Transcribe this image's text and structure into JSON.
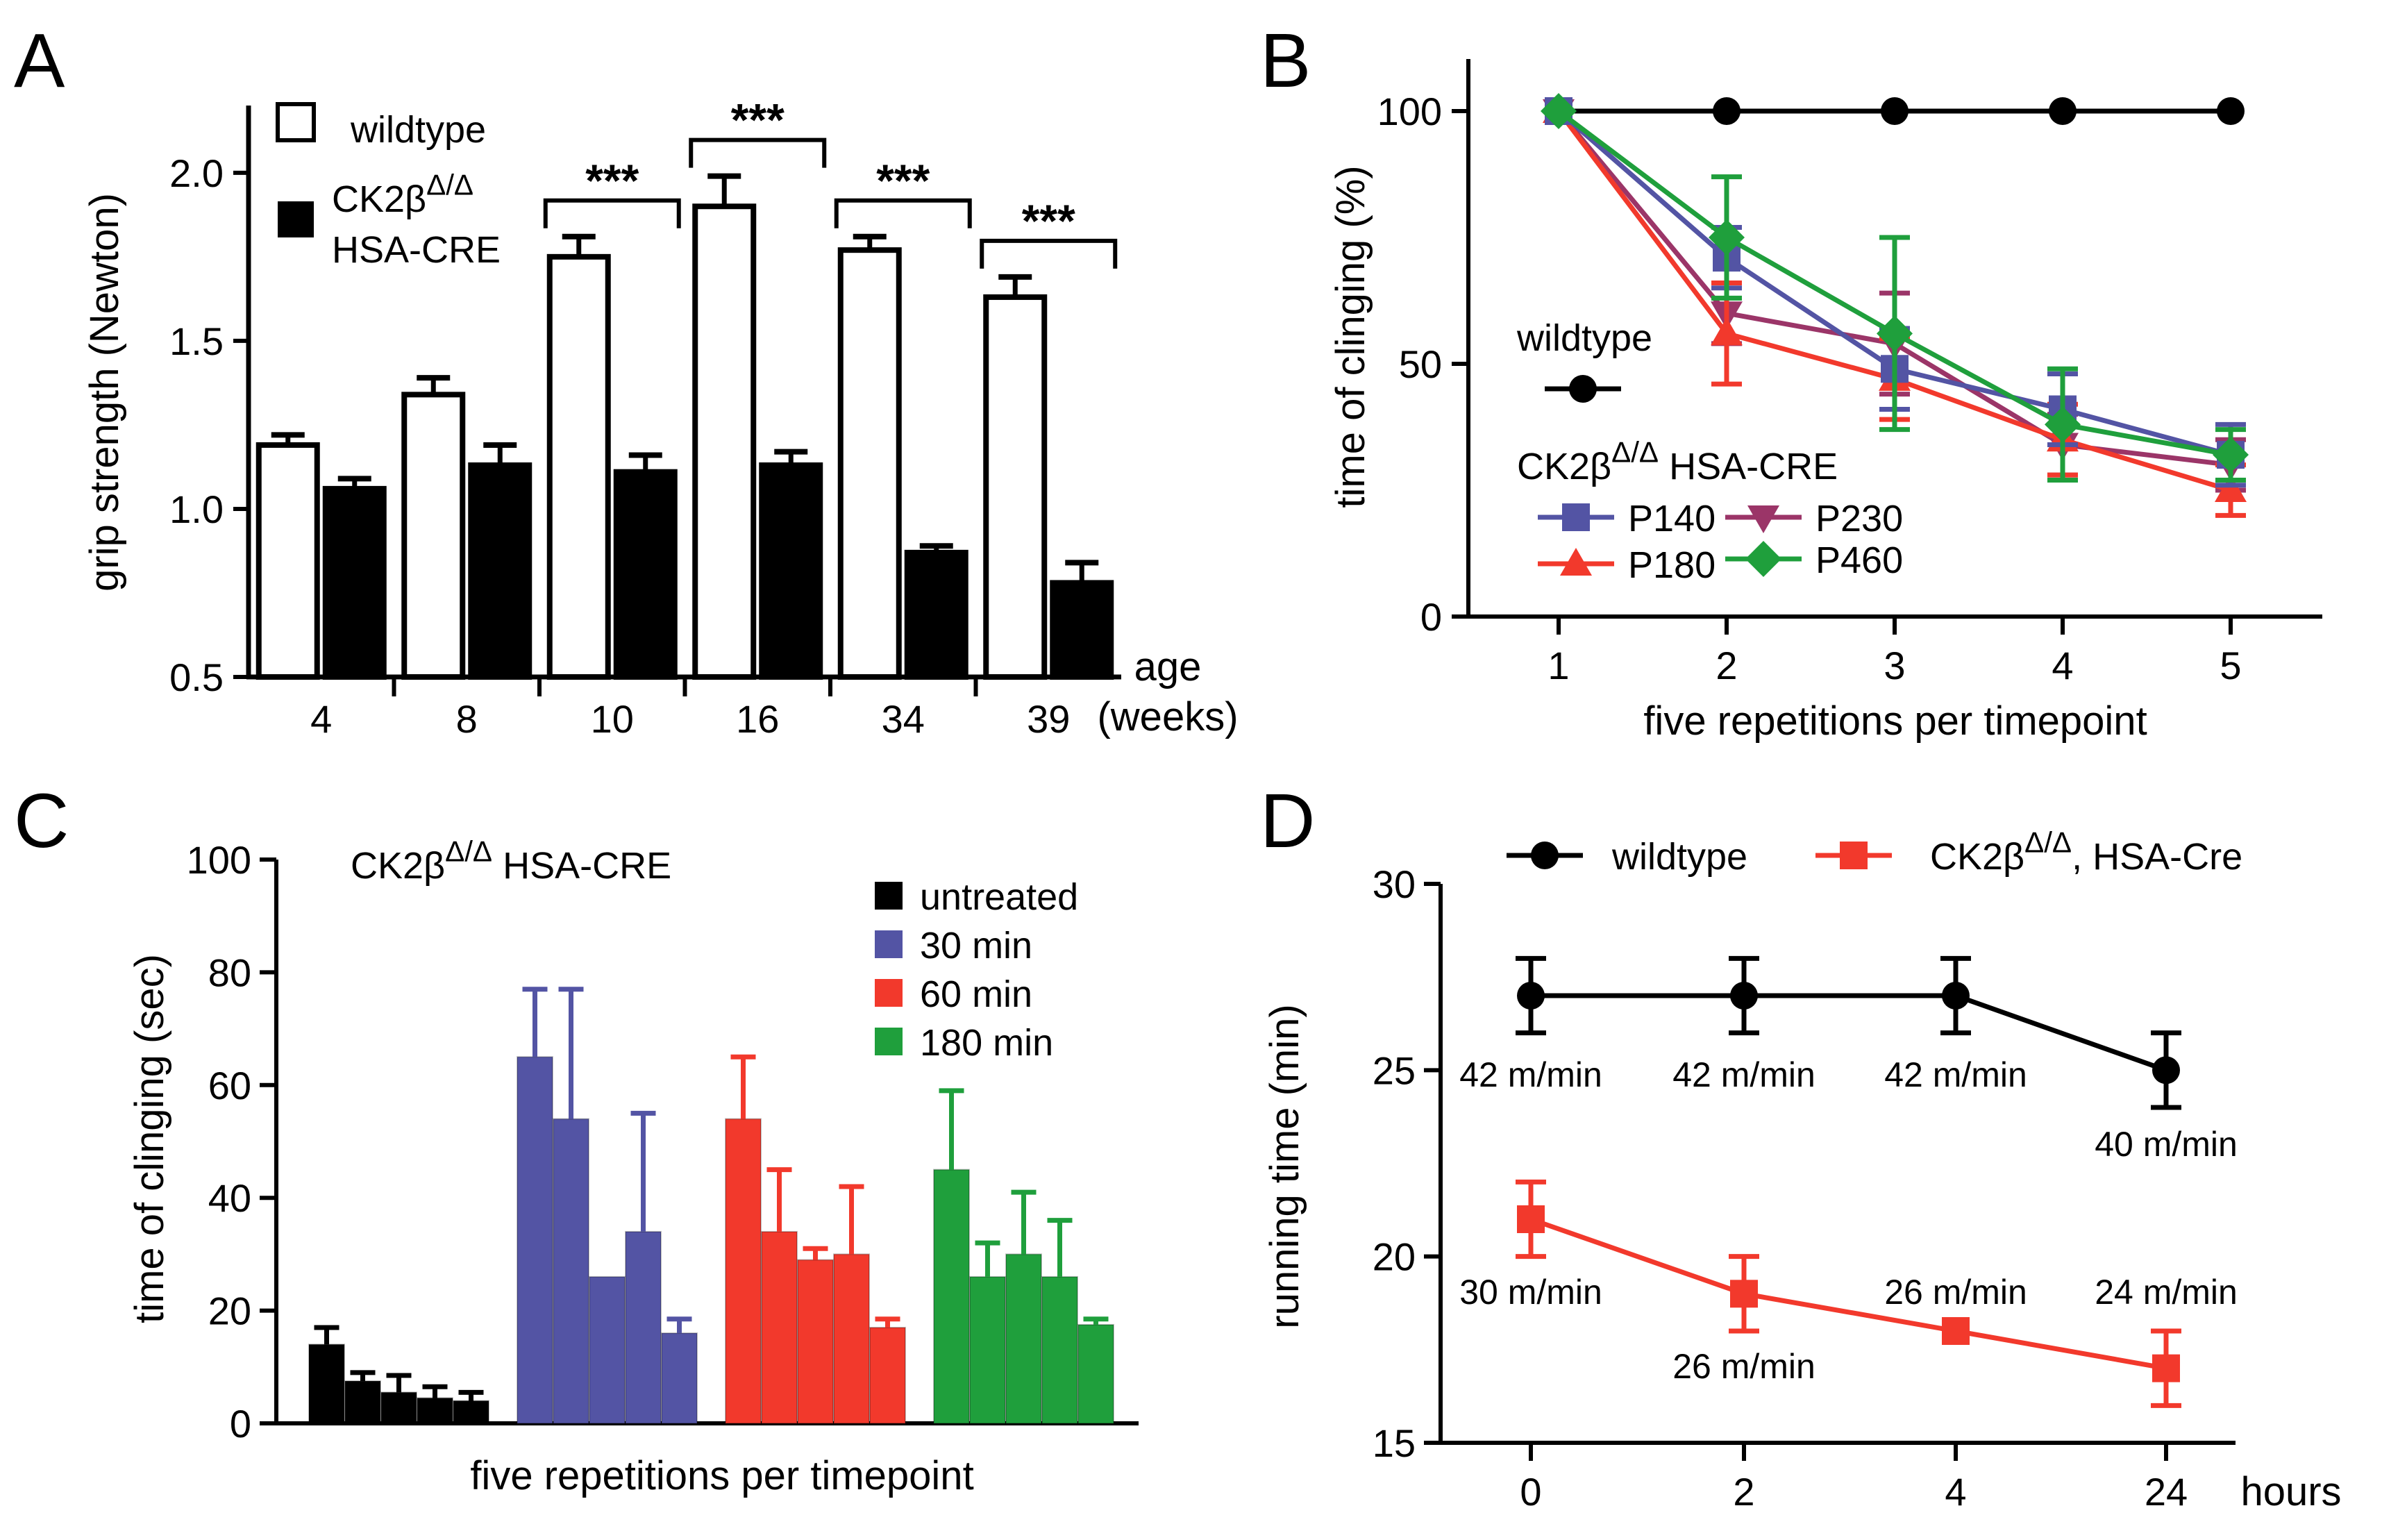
{
  "colors": {
    "black": "#000000",
    "white": "#ffffff",
    "blue": "#5354a4",
    "red": "#f2392c",
    "magenta": "#9b3568",
    "green": "#1f9f3c"
  },
  "chart_data": [
    {
      "panel": "A",
      "type": "bar",
      "ylabel": "grip strength (Newton)",
      "xlabel": "age (weeks)",
      "xlabel_lines": [
        "age",
        "(weeks)"
      ],
      "ylim": [
        0.5,
        2.2
      ],
      "yticks": [
        0.5,
        1.0,
        1.5,
        2.0
      ],
      "ytick_labels": [
        "0.5",
        "1.0",
        "1.5",
        "2.0"
      ],
      "categories": [
        "4",
        "8",
        "10",
        "16",
        "34",
        "39"
      ],
      "legend": [
        {
          "label": "wildtype",
          "fill": "white"
        },
        {
          "label_lines": [
            "CK2β",
            "Δ/Δ",
            "HSA-CRE"
          ],
          "label": "CK2βΔ/Δ HSA-CRE",
          "fill": "black"
        }
      ],
      "series": [
        {
          "name": "wildtype",
          "values": [
            1.19,
            1.34,
            1.75,
            1.9,
            1.77,
            1.63
          ],
          "errors": [
            0.03,
            0.05,
            0.06,
            0.09,
            0.04,
            0.06
          ]
        },
        {
          "name": "CK2βΔ/Δ HSA-CRE",
          "values": [
            1.06,
            1.13,
            1.11,
            1.13,
            0.87,
            0.78
          ],
          "errors": [
            0.03,
            0.06,
            0.05,
            0.04,
            0.02,
            0.06
          ]
        }
      ],
      "significance": [
        {
          "category": "10",
          "label": "***"
        },
        {
          "category": "16",
          "label": "***"
        },
        {
          "category": "34",
          "label": "***"
        },
        {
          "category": "39",
          "label": "***"
        }
      ]
    },
    {
      "panel": "B",
      "type": "line",
      "ylabel": "time of clinging (%)",
      "xlabel": "five repetitions per timepoint",
      "x": [
        1,
        2,
        3,
        4,
        5
      ],
      "xticks": [
        "1",
        "2",
        "3",
        "4",
        "5"
      ],
      "ylim": [
        0,
        100
      ],
      "yticks": [
        0,
        50,
        100
      ],
      "ytick_labels": [
        "0",
        "50",
        "100"
      ],
      "legend_title": "wildtype",
      "group_label_parts": [
        "CK2β",
        "Δ/Δ",
        " HSA-CRE"
      ],
      "series": [
        {
          "name": "wildtype",
          "color": "black",
          "marker": "circle",
          "values": [
            100,
            100,
            100,
            100,
            100
          ],
          "errors": [
            0,
            0,
            0,
            0,
            0
          ]
        },
        {
          "name": "P140",
          "color": "blue",
          "marker": "square",
          "values": [
            100,
            71,
            49,
            41,
            32
          ],
          "errors": [
            0,
            6,
            8,
            7,
            6
          ]
        },
        {
          "name": "P180",
          "color": "red",
          "marker": "triangle-up",
          "values": [
            100,
            56,
            47,
            35,
            25
          ],
          "errors": [
            0,
            10,
            8,
            7,
            5
          ]
        },
        {
          "name": "P230",
          "color": "magenta",
          "marker": "triangle-down",
          "values": [
            100,
            60,
            54,
            34,
            30
          ],
          "errors": [
            0,
            6,
            10,
            6,
            5
          ]
        },
        {
          "name": "P460",
          "color": "green",
          "marker": "diamond",
          "values": [
            100,
            75,
            56,
            38,
            32
          ],
          "errors": [
            0,
            12,
            19,
            11,
            5
          ]
        }
      ]
    },
    {
      "panel": "C",
      "type": "bar",
      "title_parts": [
        "CK2β",
        "Δ/Δ",
        " HSA-CRE"
      ],
      "ylabel": "time of clinging (sec)",
      "xlabel": "five repetitions per timepoint",
      "ylim": [
        0,
        100
      ],
      "yticks": [
        0,
        20,
        40,
        60,
        80,
        100
      ],
      "ytick_labels": [
        "0",
        "20",
        "40",
        "60",
        "80",
        "100"
      ],
      "series": [
        {
          "name": "untreated",
          "legend_label": "untreated",
          "color": "black",
          "values": [
            14,
            7.5,
            5.5,
            4.5,
            4
          ],
          "errors": [
            3,
            1.5,
            3,
            2,
            1.5
          ]
        },
        {
          "name": "30 min",
          "legend_label": "  30 min",
          "color": "blue",
          "values": [
            65,
            54,
            26,
            34,
            16
          ],
          "errors": [
            12,
            23,
            0,
            21,
            2.5
          ]
        },
        {
          "name": "60 min",
          "legend_label": "  60 min",
          "color": "red",
          "values": [
            54,
            34,
            29,
            30,
            17
          ],
          "errors": [
            11,
            11,
            2,
            12,
            1.5
          ]
        },
        {
          "name": "180 min",
          "legend_label": "180 min",
          "color": "green",
          "values": [
            45,
            26,
            30,
            26,
            17.5
          ],
          "errors": [
            14,
            6,
            11,
            10,
            1
          ]
        }
      ]
    },
    {
      "panel": "D",
      "type": "line",
      "ylabel": "running time (min)",
      "xlabel": "hours",
      "x_categories": [
        "0",
        "2",
        "4",
        "24"
      ],
      "ylim": [
        15,
        30
      ],
      "yticks": [
        15,
        20,
        25,
        30
      ],
      "ytick_labels": [
        "15",
        "20",
        "25",
        "30"
      ],
      "legend_wildtype": "wildtype",
      "legend_mutant_parts": [
        "CK2β",
        "Δ/Δ",
        ", HSA-Cre"
      ],
      "series": [
        {
          "name": "wildtype",
          "color": "black",
          "marker": "circle",
          "values": [
            27,
            27,
            27,
            25
          ],
          "errors": [
            1,
            1,
            1,
            1
          ],
          "speed_labels": [
            "42 m/min",
            "42 m/min",
            "42 m/min",
            "40 m/min"
          ]
        },
        {
          "name": "CK2βΔ/Δ, HSA-Cre",
          "color": "red",
          "marker": "square",
          "values": [
            21,
            19,
            18,
            17
          ],
          "errors": [
            1,
            1,
            0.2,
            1
          ],
          "speed_labels": [
            "30 m/min",
            "26 m/min",
            "26 m/min",
            "24 m/min"
          ]
        }
      ]
    }
  ]
}
